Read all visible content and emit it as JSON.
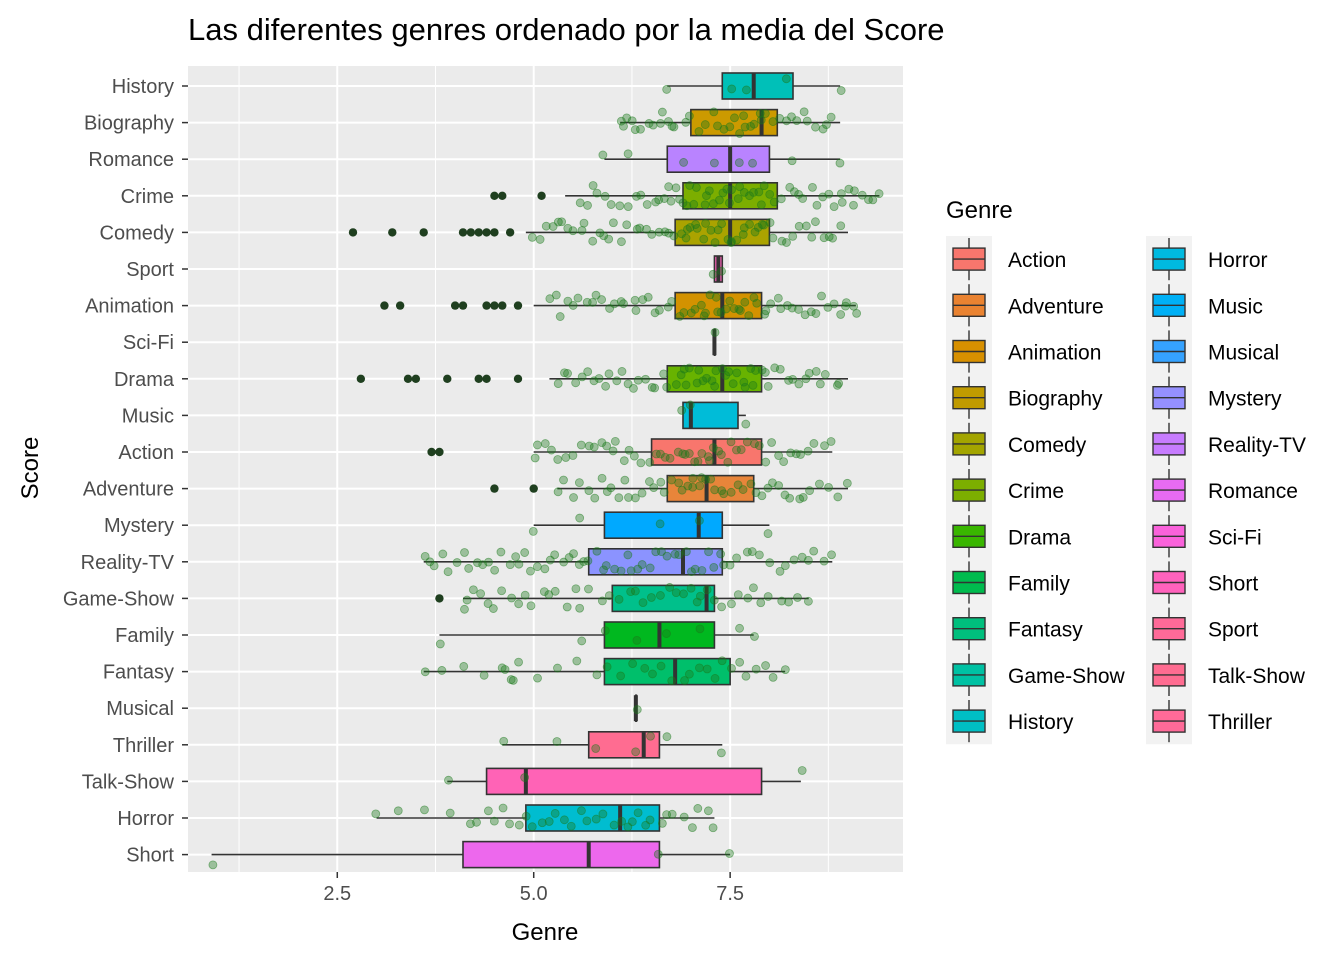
{
  "chart_data": {
    "type": "boxplot",
    "orientation": "horizontal",
    "title": "Las diferentes genres ordenado por la media del Score",
    "xlabel": "Genre",
    "ylabel": "Score",
    "xlim": [
      0.6,
      9.7
    ],
    "x_ticks": [
      {
        "value": 2.5,
        "label": "2.5"
      },
      {
        "value": 5.0,
        "label": "5.0"
      },
      {
        "value": 7.5,
        "label": "7.5"
      }
    ],
    "grid": true,
    "legend": {
      "title": "Genre",
      "placement": "right"
    },
    "categories": [
      "History",
      "Biography",
      "Romance",
      "Crime",
      "Comedy",
      "Sport",
      "Animation",
      "Sci-Fi",
      "Drama",
      "Music",
      "Action",
      "Adventure",
      "Mystery",
      "Reality-TV",
      "Game-Show",
      "Family",
      "Fantasy",
      "Musical",
      "Thriller",
      "Talk-Show",
      "Horror",
      "Short"
    ],
    "boxes": [
      {
        "genre": "History",
        "min": 6.7,
        "q1": 7.4,
        "median": 7.8,
        "q3": 8.3,
        "max": 8.9,
        "outliers": [],
        "points": [
          6.7,
          7.5,
          7.7,
          8.2,
          8.9
        ]
      },
      {
        "genre": "Biography",
        "min": 6.1,
        "q1": 7.0,
        "median": 7.9,
        "q3": 8.1,
        "max": 8.9,
        "outliers": [],
        "points": [
          6.1,
          6.3,
          6.6,
          6.8,
          7.2,
          7.5,
          7.7,
          7.9,
          8.2,
          8.5,
          8.8
        ]
      },
      {
        "genre": "Romance",
        "min": 5.9,
        "q1": 6.7,
        "median": 7.5,
        "q3": 8.0,
        "max": 8.9,
        "outliers": [],
        "points": [
          5.9,
          6.2,
          6.9,
          7.3,
          7.6,
          7.8,
          8.3,
          8.9
        ]
      },
      {
        "genre": "Crime",
        "min": 5.4,
        "q1": 6.9,
        "median": 7.5,
        "q3": 8.1,
        "max": 9.4,
        "outliers": [
          4.5,
          4.6,
          5.1
        ],
        "points": [
          5.6,
          5.9,
          6.3,
          6.6,
          6.8,
          7.0,
          7.2,
          7.4,
          7.6,
          7.8,
          8.0,
          8.3,
          8.6,
          8.9,
          9.1,
          9.4
        ]
      },
      {
        "genre": "Comedy",
        "min": 4.9,
        "q1": 6.8,
        "median": 7.5,
        "q3": 8.0,
        "max": 9.0,
        "outliers": [
          2.7,
          3.2,
          3.6,
          4.1,
          4.2,
          4.3,
          4.4,
          4.5,
          4.7
        ],
        "points": [
          5.0,
          5.3,
          5.6,
          5.9,
          6.2,
          6.5,
          6.8,
          7.0,
          7.2,
          7.4,
          7.6,
          7.8,
          8.0,
          8.3,
          8.6,
          8.9
        ]
      },
      {
        "genre": "Sport",
        "min": 7.3,
        "q1": 7.3,
        "median": 7.35,
        "q3": 7.4,
        "max": 7.4,
        "outliers": [],
        "points": [
          7.3,
          7.4
        ]
      },
      {
        "genre": "Animation",
        "min": 5.0,
        "q1": 6.8,
        "median": 7.4,
        "q3": 7.9,
        "max": 9.1,
        "outliers": [
          3.1,
          3.3,
          4.0,
          4.1,
          4.4,
          4.5,
          4.6,
          4.8
        ],
        "points": [
          5.2,
          5.5,
          5.8,
          6.1,
          6.4,
          6.7,
          7.0,
          7.2,
          7.4,
          7.6,
          7.8,
          8.0,
          8.3,
          8.6,
          8.9,
          9.1
        ]
      },
      {
        "genre": "Sci-Fi",
        "min": 7.3,
        "q1": 7.3,
        "median": 7.3,
        "q3": 7.3,
        "max": 7.3,
        "outliers": [],
        "points": [
          7.3
        ]
      },
      {
        "genre": "Drama",
        "min": 5.2,
        "q1": 6.7,
        "median": 7.4,
        "q3": 7.9,
        "max": 9.0,
        "outliers": [
          2.8,
          3.4,
          3.5,
          3.9,
          4.3,
          4.4,
          4.8
        ],
        "points": [
          5.3,
          5.6,
          5.9,
          6.2,
          6.5,
          6.8,
          7.0,
          7.2,
          7.4,
          7.6,
          7.8,
          8.0,
          8.3,
          8.6,
          8.9
        ]
      },
      {
        "genre": "Music",
        "min": 6.9,
        "q1": 6.9,
        "median": 7.0,
        "q3": 7.6,
        "max": 7.7,
        "outliers": [],
        "points": [
          6.9,
          7.0,
          7.7
        ]
      },
      {
        "genre": "Action",
        "min": 5.0,
        "q1": 6.5,
        "median": 7.3,
        "q3": 7.9,
        "max": 8.8,
        "outliers": [
          3.7,
          3.8
        ],
        "points": [
          5.0,
          5.3,
          5.7,
          6.0,
          6.3,
          6.6,
          6.9,
          7.1,
          7.3,
          7.5,
          7.8,
          8.1,
          8.4,
          8.8
        ]
      },
      {
        "genre": "Adventure",
        "min": 5.3,
        "q1": 6.7,
        "median": 7.2,
        "q3": 7.8,
        "max": 9.0,
        "outliers": [
          4.5,
          5.0
        ],
        "points": [
          5.3,
          5.7,
          6.0,
          6.3,
          6.6,
          6.9,
          7.1,
          7.3,
          7.6,
          7.9,
          8.2,
          8.5,
          9.0
        ]
      },
      {
        "genre": "Mystery",
        "min": 5.0,
        "q1": 5.9,
        "median": 7.1,
        "q3": 7.4,
        "max": 8.0,
        "outliers": [],
        "points": [
          5.0,
          5.6,
          6.6,
          7.1,
          8.0
        ]
      },
      {
        "genre": "Reality-TV",
        "min": 3.6,
        "q1": 5.7,
        "median": 6.9,
        "q3": 7.4,
        "max": 8.8,
        "outliers": [],
        "points": [
          3.6,
          3.9,
          4.3,
          4.6,
          4.9,
          5.2,
          5.5,
          5.8,
          6.1,
          6.4,
          6.7,
          7.0,
          7.3,
          7.6,
          8.0,
          8.4,
          8.8
        ]
      },
      {
        "genre": "Game-Show",
        "min": 4.1,
        "q1": 6.0,
        "median": 7.2,
        "q3": 7.3,
        "max": 8.5,
        "outliers": [
          3.8
        ],
        "points": [
          4.1,
          4.4,
          4.8,
          5.2,
          5.6,
          6.1,
          6.5,
          6.9,
          7.2,
          7.6,
          8.0,
          8.5
        ]
      },
      {
        "genre": "Family",
        "min": 3.8,
        "q1": 5.9,
        "median": 6.6,
        "q3": 7.3,
        "max": 7.8,
        "outliers": [],
        "points": [
          3.8,
          5.6,
          5.9,
          6.3,
          6.7,
          7.1,
          7.6,
          7.8
        ]
      },
      {
        "genre": "Fantasy",
        "min": 3.6,
        "q1": 5.9,
        "median": 6.8,
        "q3": 7.5,
        "max": 8.2,
        "outliers": [],
        "points": [
          3.6,
          4.6,
          4.8,
          5.8,
          6.4,
          6.9,
          7.3,
          7.7,
          8.2
        ]
      },
      {
        "genre": "Musical",
        "min": 6.3,
        "q1": 6.3,
        "median": 6.3,
        "q3": 6.3,
        "max": 6.3,
        "outliers": [],
        "points": [
          6.3
        ]
      },
      {
        "genre": "Thriller",
        "min": 4.6,
        "q1": 5.7,
        "median": 6.4,
        "q3": 6.6,
        "max": 7.4,
        "outliers": [],
        "points": [
          4.6,
          5.3,
          5.8,
          6.3,
          6.5,
          6.7,
          7.4
        ]
      },
      {
        "genre": "Talk-Show",
        "min": 3.9,
        "q1": 4.4,
        "median": 4.9,
        "q3": 7.9,
        "max": 8.4,
        "outliers": [],
        "points": [
          3.9,
          4.9,
          8.4
        ]
      },
      {
        "genre": "Horror",
        "min": 3.0,
        "q1": 4.9,
        "median": 6.1,
        "q3": 6.6,
        "max": 7.3,
        "outliers": [],
        "points": [
          3.0,
          4.2,
          4.6,
          5.0,
          5.4,
          5.8,
          6.2,
          6.5,
          6.9,
          7.3
        ]
      },
      {
        "genre": "Short",
        "min": 0.9,
        "q1": 4.1,
        "median": 5.7,
        "q3": 6.6,
        "max": 7.5,
        "outliers": [],
        "points": [
          0.9,
          6.6,
          7.5
        ]
      }
    ],
    "legend_entries": [
      {
        "name": "Action",
        "color": "#F8766D"
      },
      {
        "name": "Adventure",
        "color": "#EA8331"
      },
      {
        "name": "Animation",
        "color": "#D89000"
      },
      {
        "name": "Biography",
        "color": "#C09B00"
      },
      {
        "name": "Comedy",
        "color": "#A3A500"
      },
      {
        "name": "Crime",
        "color": "#7CAE00"
      },
      {
        "name": "Drama",
        "color": "#39B600"
      },
      {
        "name": "Family",
        "color": "#00BB4E"
      },
      {
        "name": "Fantasy",
        "color": "#00BF7D"
      },
      {
        "name": "Game-Show",
        "color": "#00C1A3"
      },
      {
        "name": "History",
        "color": "#00BFC4"
      },
      {
        "name": "Horror",
        "color": "#00BAE0"
      },
      {
        "name": "Music",
        "color": "#00B0F6"
      },
      {
        "name": "Musical",
        "color": "#35A2FF"
      },
      {
        "name": "Mystery",
        "color": "#9590FF"
      },
      {
        "name": "Reality-TV",
        "color": "#C77CFF"
      },
      {
        "name": "Romance",
        "color": "#E76BF3"
      },
      {
        "name": "Sci-Fi",
        "color": "#FA62DB"
      },
      {
        "name": "Short",
        "color": "#FF62BC"
      },
      {
        "name": "Sport",
        "color": "#FF6A98"
      },
      {
        "name": "Talk-Show",
        "color": "#FF6C91"
      },
      {
        "name": "Thriller",
        "color": "#FF6A98"
      }
    ],
    "box_colors": {
      "History": "#00C0B8",
      "Biography": "#CC9A00",
      "Romance": "#B983FF",
      "Crime": "#7CAE00",
      "Comedy": "#ABA300",
      "Sport": "#FF62BC",
      "Animation": "#D39200",
      "Sci-Fi": "#E76BF3",
      "Drama": "#68B300",
      "Music": "#00BCD8",
      "Action": "#F8766D",
      "Adventure": "#E8853A",
      "Mystery": "#00A9FF",
      "Reality-TV": "#8B93FF",
      "Game-Show": "#00C08B",
      "Family": "#00B81F",
      "Fantasy": "#00BF6B",
      "Musical": "#00B3F0",
      "Thriller": "#FF6C91",
      "Talk-Show": "#FF63B6",
      "Horror": "#00BDD0",
      "Short": "#ED68ED"
    },
    "point_color": "#1a7a1a",
    "outlier_color": "#1f3f1f"
  }
}
